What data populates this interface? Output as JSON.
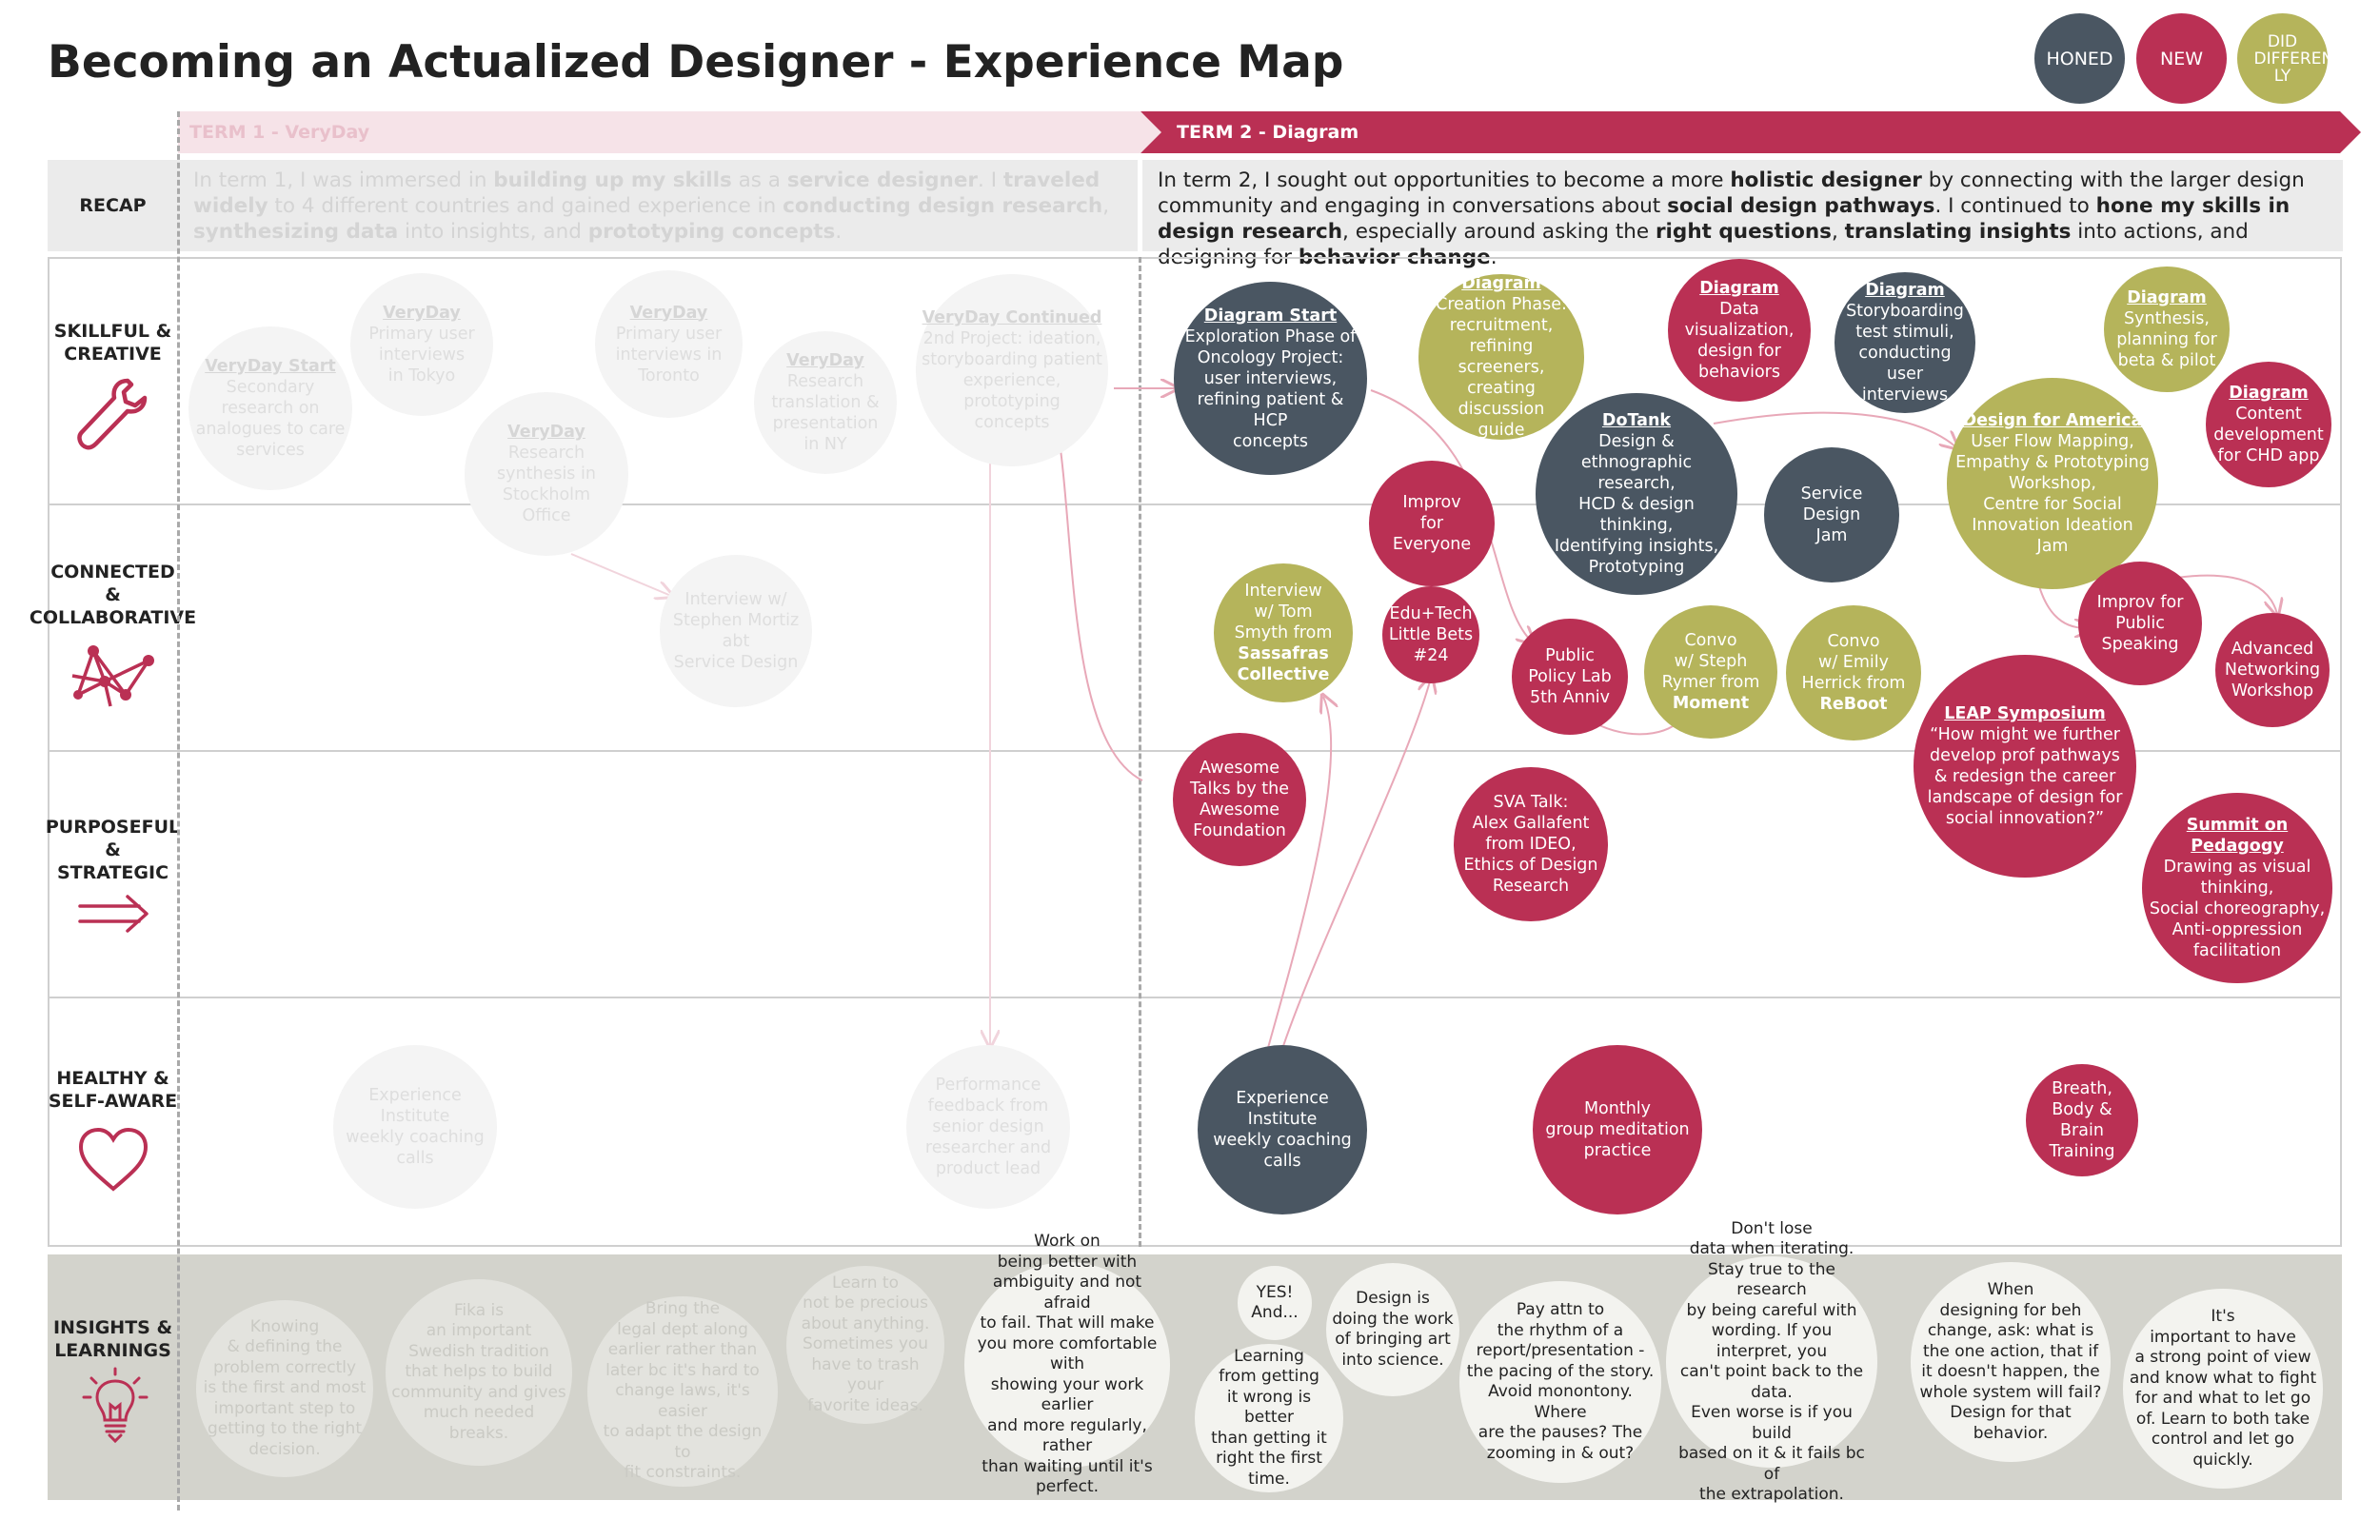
{
  "title": "Becoming an Actualized Designer - Experience Map",
  "legend": [
    {
      "label": "HONED",
      "color": "#4a5662"
    },
    {
      "label": "NEW",
      "color": "#ba3054"
    },
    {
      "label": "DID DIFFERENT LY",
      "color": "#b5b45b"
    }
  ],
  "terms": {
    "term1": "TERM 1 - VeryDay",
    "term2": "TERM 2 - Diagram"
  },
  "rows": {
    "recap": "RECAP",
    "skillful": [
      "SKILLFUL &",
      "CREATIVE"
    ],
    "connected": [
      "CONNECTED",
      "&",
      "COLLABORATIVE"
    ],
    "purposeful": [
      "PURPOSEFUL",
      "&",
      "STRATEGIC"
    ],
    "healthy": [
      "HEALTHY &",
      "SELF-AWARE"
    ],
    "insights": [
      "INSIGHTS &",
      "LEARNINGS"
    ]
  },
  "recap": {
    "term1": [
      {
        "t": "In term 1, I was immersed in "
      },
      {
        "b": "building up my skills"
      },
      {
        "t": " as a "
      },
      {
        "b": "service designer"
      },
      {
        "t": ". I "
      },
      {
        "b": "traveled widely"
      },
      {
        "t": " to 4 different countries and gained experience in "
      },
      {
        "b": "conducting design research"
      },
      {
        "t": ", "
      },
      {
        "b": "synthesizing data"
      },
      {
        "t": " into insights, and "
      },
      {
        "b": "prototyping concepts"
      },
      {
        "t": "."
      }
    ],
    "term2": [
      {
        "t": "In term 2, I sought out opportunities to become a more "
      },
      {
        "b": "holistic designer"
      },
      {
        "t": " by connecting with the larger design community and engaging in conversations about "
      },
      {
        "b": "social design pathways"
      },
      {
        "t": ". I continued to "
      },
      {
        "b": "hone my skills in design research"
      },
      {
        "t": ", especially around asking the "
      },
      {
        "b": "right questions"
      },
      {
        "t": ", "
      },
      {
        "b": "translating insights"
      },
      {
        "t": " into actions, and designing for "
      },
      {
        "b": "behavior change"
      },
      {
        "t": "."
      }
    ]
  },
  "nodes": [
    {
      "id": "vd-start",
      "kind": "faded",
      "title": "VeryDay Start",
      "lines": [
        "Secondary",
        "research on",
        "analogues to care",
        "services"
      ]
    },
    {
      "id": "vd-tokyo",
      "kind": "faded",
      "title": "VeryDay",
      "lines": [
        "Primary user",
        "interviews",
        "in Tokyo"
      ]
    },
    {
      "id": "vd-toronto",
      "kind": "faded",
      "title": "VeryDay",
      "lines": [
        "Primary user",
        "interviews in",
        "Toronto"
      ]
    },
    {
      "id": "vd-stockholm",
      "kind": "faded",
      "title": "VeryDay",
      "lines": [
        "Research",
        "synthesis in",
        "Stockholm",
        "Office"
      ]
    },
    {
      "id": "vd-ny",
      "kind": "faded",
      "title": "VeryDay",
      "lines": [
        "Research",
        "translation &",
        "presentation",
        "in NY"
      ]
    },
    {
      "id": "vd-continued",
      "kind": "faded",
      "title": "VeryDay Continued",
      "lines": [
        "2nd Project: ideation,",
        "storyboarding patient",
        "experience,",
        "prototyping",
        "concepts"
      ]
    },
    {
      "id": "vd-interview",
      "kind": "faded",
      "title": "",
      "lines": [
        "Interview w/",
        "Stephen Mortiz abt",
        "Service Design"
      ]
    },
    {
      "id": "vd-coaching",
      "kind": "faded",
      "title": "",
      "lines": [
        "Experience",
        "Institute",
        "weekly coaching",
        "calls"
      ]
    },
    {
      "id": "vd-feedback",
      "kind": "faded",
      "title": "",
      "lines": [
        "Performance",
        "feedback from",
        "senior design",
        "researcher and",
        "product lead"
      ]
    },
    {
      "id": "dg-start",
      "kind": "honed",
      "title": "Diagram Start",
      "lines": [
        "Exploration Phase of",
        "Oncology Project:",
        "user interviews,",
        "refining patient & HCP",
        "concepts"
      ]
    },
    {
      "id": "dg-creation",
      "kind": "diff",
      "title": "Diagram",
      "lines": [
        "Creation Phase:",
        "recruitment,",
        "refining screeners,",
        "creating discussion",
        "guide"
      ]
    },
    {
      "id": "dg-dataviz",
      "kind": "newc",
      "title": "Diagram",
      "lines": [
        "Data",
        "visualization,",
        "design for",
        "behaviors"
      ]
    },
    {
      "id": "dg-storyboard",
      "kind": "honed",
      "title": "Diagram",
      "lines": [
        "Storyboarding",
        "test stimuli,",
        "conducting user",
        "interviews"
      ]
    },
    {
      "id": "dg-synthesis",
      "kind": "diff",
      "title": "Diagram",
      "lines": [
        "Synthesis,",
        "planning for",
        "beta & pilot"
      ]
    },
    {
      "id": "dg-content",
      "kind": "newc",
      "title": "Diagram",
      "lines": [
        "Content",
        "development",
        "for CHD app"
      ]
    },
    {
      "id": "dotank",
      "kind": "honed",
      "title": "DoTank",
      "lines": [
        "Design &",
        "ethnographic research,",
        "HCD & design thinking,",
        "Identifying insights,",
        "Prototyping"
      ]
    },
    {
      "id": "service-jam",
      "kind": "honed",
      "title": "",
      "lines": [
        "Service",
        "Design",
        "Jam"
      ]
    },
    {
      "id": "dfa",
      "kind": "diff",
      "title": "Design for America",
      "lines": [
        "User Flow Mapping,",
        "Empathy & Prototyping",
        "Workshop,",
        "Centre for Social",
        "Innovation Ideation",
        "Jam"
      ]
    },
    {
      "id": "improv-everyone",
      "kind": "newc",
      "title": "",
      "lines": [
        "Improv",
        "for",
        "Everyone"
      ]
    },
    {
      "id": "interview-tom",
      "kind": "diff",
      "title": "",
      "lines": [
        "Interview",
        "w/ Tom",
        "Smyth from"
      ],
      "sub": [
        "Sassafras",
        "Collective"
      ]
    },
    {
      "id": "edutech",
      "kind": "newc",
      "title": "",
      "lines": [
        "Edu+Tech",
        "Little Bets",
        "#24"
      ]
    },
    {
      "id": "public-policy",
      "kind": "newc",
      "title": "",
      "lines": [
        "Public",
        "Policy Lab",
        "5th Anniv"
      ]
    },
    {
      "id": "convo-steph",
      "kind": "diff",
      "title": "",
      "lines": [
        "Convo",
        "w/ Steph",
        "Rymer from"
      ],
      "sub": [
        "Moment"
      ]
    },
    {
      "id": "convo-emily",
      "kind": "diff",
      "title": "",
      "lines": [
        "Convo",
        "w/ Emily",
        "Herrick from"
      ],
      "sub": [
        "ReBoot"
      ]
    },
    {
      "id": "improv-public",
      "kind": "newc",
      "title": "",
      "lines": [
        "Improv for",
        "Public",
        "Speaking"
      ]
    },
    {
      "id": "adv-networking",
      "kind": "newc",
      "title": "",
      "lines": [
        "Advanced",
        "Networking",
        "Workshop"
      ]
    },
    {
      "id": "leap",
      "kind": "newc",
      "title": "LEAP Symposium",
      "lines": [
        "“How might we further",
        "develop prof pathways",
        "& redesign the career",
        "landscape of design for",
        "social innovation?”"
      ]
    },
    {
      "id": "awesome",
      "kind": "newc",
      "title": "",
      "lines": [
        "Awesome",
        "Talks by the",
        "Awesome",
        "Foundation"
      ]
    },
    {
      "id": "sva",
      "kind": "newc",
      "title": "",
      "lines": [
        "SVA Talk:",
        "Alex Gallafent",
        "from IDEO,",
        "Ethics of Design",
        "Research"
      ]
    },
    {
      "id": "summit",
      "kind": "newc",
      "title": "Summit on Pedagogy",
      "lines": [
        "Drawing as visual",
        "thinking,",
        "Social choreography,",
        "Anti-oppression",
        "facilitation"
      ]
    },
    {
      "id": "ei-coaching",
      "kind": "honed",
      "title": "",
      "lines": [
        "Experience",
        "Institute",
        "weekly coaching",
        "calls"
      ]
    },
    {
      "id": "meditation",
      "kind": "newc",
      "title": "",
      "lines": [
        "Monthly",
        "group meditation",
        "practice"
      ]
    },
    {
      "id": "breath",
      "kind": "newc",
      "title": "",
      "lines": [
        "Breath,",
        "Body & Brain",
        "Training"
      ]
    }
  ],
  "insights": [
    {
      "id": "ins-1",
      "faded": true,
      "lines": [
        "Knowing",
        "& defining the",
        "problem correctly",
        "is the first and most",
        "important step to",
        "getting to the right",
        "decision."
      ]
    },
    {
      "id": "ins-2",
      "faded": true,
      "lines": [
        "Fika is",
        "an important",
        "Swedish tradition",
        "that helps to build",
        "community and gives",
        "much needed",
        "breaks."
      ]
    },
    {
      "id": "ins-3",
      "faded": true,
      "lines": [
        "Bring the",
        "legal dept along",
        "earlier rather than",
        "later bc it's hard to",
        "change laws, it's easier",
        "to adapt the design to",
        "fit constraints."
      ]
    },
    {
      "id": "ins-4",
      "faded": true,
      "lines": [
        "Learn to",
        "not be precious",
        "about anything.",
        "Sometimes you",
        "have to trash your",
        "favorite ideas."
      ]
    },
    {
      "id": "ins-5",
      "faded": false,
      "lines": [
        "Work on",
        "being better with",
        "ambiguity and not afraid",
        "to fail. That will make",
        "you more comfortable with",
        "showing your work earlier",
        "and more regularly, rather",
        "than waiting until it's",
        "perfect."
      ]
    },
    {
      "id": "ins-6",
      "faded": false,
      "lines": [
        "YES!",
        "And..."
      ]
    },
    {
      "id": "ins-7",
      "faded": false,
      "lines": [
        "Design is",
        "doing the work",
        "of bringing art",
        "into science."
      ]
    },
    {
      "id": "ins-8",
      "faded": false,
      "lines": [
        "Learning",
        "from getting",
        "it wrong is better",
        "than getting it",
        "right the first",
        "time."
      ]
    },
    {
      "id": "ins-9",
      "faded": false,
      "lines": [
        "Pay attn to",
        "the rhythm of a",
        "report/presentation -",
        "the pacing of the story.",
        "Avoid monontony. Where",
        "are the pauses? The",
        "zooming in & out?"
      ]
    },
    {
      "id": "ins-10",
      "faded": false,
      "lines": [
        "Don't lose",
        "data when iterating.",
        "Stay true to the research",
        "by being careful with",
        "wording. If you interpret, you",
        "can't point back to the data.",
        "Even worse is if you build",
        "based on it & it fails bc of",
        "the extrapolation."
      ]
    },
    {
      "id": "ins-11",
      "faded": false,
      "lines": [
        "When",
        "designing for beh",
        "change, ask: what is",
        "the one action, that if",
        "it doesn't happen, the",
        "whole system will fail?",
        "Design for that",
        "behavior."
      ]
    },
    {
      "id": "ins-12",
      "faded": false,
      "lines": [
        "It's",
        "important to have",
        "a strong point of view",
        "and know what to fight",
        "for and what to let go",
        "of. Learn to both take",
        "control and let go",
        "quickly."
      ]
    }
  ],
  "icons": [
    "wrench-icon",
    "network-icon",
    "arrow-right-icon",
    "heart-icon",
    "lightbulb-icon"
  ],
  "colors": {
    "accent": "#ba3054",
    "honed": "#4a5662",
    "new": "#ba3054",
    "did_differently": "#b5b45b",
    "term1_bg": "#f6e3e8",
    "term2_bg": "#ba3054"
  }
}
